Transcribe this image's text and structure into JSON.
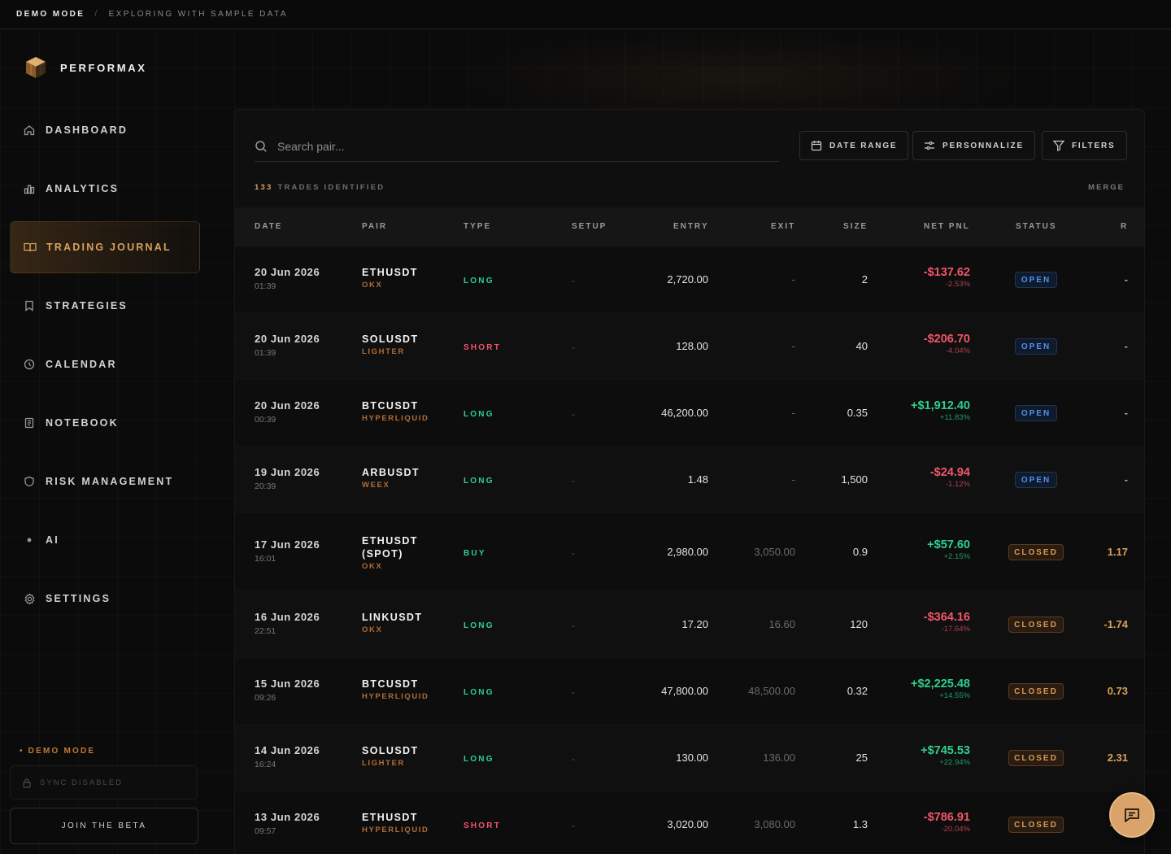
{
  "topbar": {
    "demo": "DEMO MODE",
    "separator": "/",
    "subtitle": "EXPLORING WITH SAMPLE DATA"
  },
  "brand": {
    "name": "PERFORMAX"
  },
  "nav": [
    {
      "label": "DASHBOARD",
      "icon": "home-icon",
      "active": false
    },
    {
      "label": "ANALYTICS",
      "icon": "bar-chart-icon",
      "active": false
    },
    {
      "label": "TRADING JOURNAL",
      "icon": "book-icon",
      "active": true
    },
    {
      "label": "STRATEGIES",
      "icon": "bookmark-icon",
      "active": false
    },
    {
      "label": "CALENDAR",
      "icon": "clock-icon",
      "active": false
    },
    {
      "label": "NOTEBOOK",
      "icon": "notebook-icon",
      "active": false
    },
    {
      "label": "RISK MANAGEMENT",
      "icon": "shield-icon",
      "active": false
    },
    {
      "label": "AI",
      "icon": "dot-icon",
      "active": false
    },
    {
      "label": "SETTINGS",
      "icon": "gear-icon",
      "active": false
    }
  ],
  "sidebar_footer": {
    "demo_mode": "• DEMO MODE",
    "sync": "SYNC DISABLED",
    "beta": "JOIN THE BETA"
  },
  "toolbar": {
    "search_placeholder": "Search pair...",
    "date_range": "DATE RANGE",
    "personnalize": "PERSONNALIZE",
    "filters": "FILTERS"
  },
  "summary": {
    "count": "133",
    "label": "TRADES IDENTIFIED",
    "merge": "MERGE"
  },
  "table": {
    "headers": [
      "DATE",
      "PAIR",
      "TYPE",
      "SETUP",
      "ENTRY",
      "EXIT",
      "SIZE",
      "NET PNL",
      "STATUS",
      "R"
    ],
    "rows": [
      {
        "date": "20 Jun 2026",
        "time": "01:39",
        "pair": "ETHUSDT",
        "exchange": "OKX",
        "type": "LONG",
        "setup": "-",
        "entry": "2,720.00",
        "exit": "-",
        "size": "2",
        "pnl": "-$137.62",
        "pct": "-2.53%",
        "pnl_sign": "neg",
        "status": "OPEN",
        "r": "-"
      },
      {
        "date": "20 Jun 2026",
        "time": "01:39",
        "pair": "SOLUSDT",
        "exchange": "LIGHTER",
        "type": "SHORT",
        "setup": "-",
        "entry": "128.00",
        "exit": "-",
        "size": "40",
        "pnl": "-$206.70",
        "pct": "-4.04%",
        "pnl_sign": "neg",
        "status": "OPEN",
        "r": "-"
      },
      {
        "date": "20 Jun 2026",
        "time": "00:39",
        "pair": "BTCUSDT",
        "exchange": "HYPERLIQUID",
        "type": "LONG",
        "setup": "-",
        "entry": "46,200.00",
        "exit": "-",
        "size": "0.35",
        "pnl": "+$1,912.40",
        "pct": "+11.83%",
        "pnl_sign": "pos",
        "status": "OPEN",
        "r": "-"
      },
      {
        "date": "19 Jun 2026",
        "time": "20:39",
        "pair": "ARBUSDT",
        "exchange": "WEEX",
        "type": "LONG",
        "setup": "-",
        "entry": "1.48",
        "exit": "-",
        "size": "1,500",
        "pnl": "-$24.94",
        "pct": "-1.12%",
        "pnl_sign": "neg",
        "status": "OPEN",
        "r": "-"
      },
      {
        "date": "17 Jun 2026",
        "time": "16:01",
        "pair": "ETHUSDT (SPOT)",
        "exchange": "OKX",
        "type": "BUY",
        "setup": "-",
        "entry": "2,980.00",
        "exit": "3,050.00",
        "size": "0.9",
        "pnl": "+$57.60",
        "pct": "+2.15%",
        "pnl_sign": "pos",
        "status": "CLOSED",
        "r": "1.17"
      },
      {
        "date": "16 Jun 2026",
        "time": "22:51",
        "pair": "LINKUSDT",
        "exchange": "OKX",
        "type": "LONG",
        "setup": "-",
        "entry": "17.20",
        "exit": "16.60",
        "size": "120",
        "pnl": "-$364.16",
        "pct": "-17.64%",
        "pnl_sign": "neg",
        "status": "CLOSED",
        "r": "-1.74"
      },
      {
        "date": "15 Jun 2026",
        "time": "09:26",
        "pair": "BTCUSDT",
        "exchange": "HYPERLIQUID",
        "type": "LONG",
        "setup": "-",
        "entry": "47,800.00",
        "exit": "48,500.00",
        "size": "0.32",
        "pnl": "+$2,225.48",
        "pct": "+14.55%",
        "pnl_sign": "pos",
        "status": "CLOSED",
        "r": "0.73"
      },
      {
        "date": "14 Jun 2026",
        "time": "16:24",
        "pair": "SOLUSDT",
        "exchange": "LIGHTER",
        "type": "LONG",
        "setup": "-",
        "entry": "130.00",
        "exit": "136.00",
        "size": "25",
        "pnl": "+$745.53",
        "pct": "+22.94%",
        "pnl_sign": "pos",
        "status": "CLOSED",
        "r": "2.31"
      },
      {
        "date": "13 Jun 2026",
        "time": "09:57",
        "pair": "ETHUSDT",
        "exchange": "HYPERLIQUID",
        "type": "SHORT",
        "setup": "-",
        "entry": "3,020.00",
        "exit": "3,080.00",
        "size": "1.3",
        "pnl": "-$786.91",
        "pct": "-20.04%",
        "pnl_sign": "neg",
        "status": "CLOSED",
        "r": "-0.7"
      }
    ]
  },
  "colors": {
    "accent": "#d9a15c",
    "long": "#2fcf8e",
    "short": "#f2566a",
    "open": "#4f93f0"
  }
}
